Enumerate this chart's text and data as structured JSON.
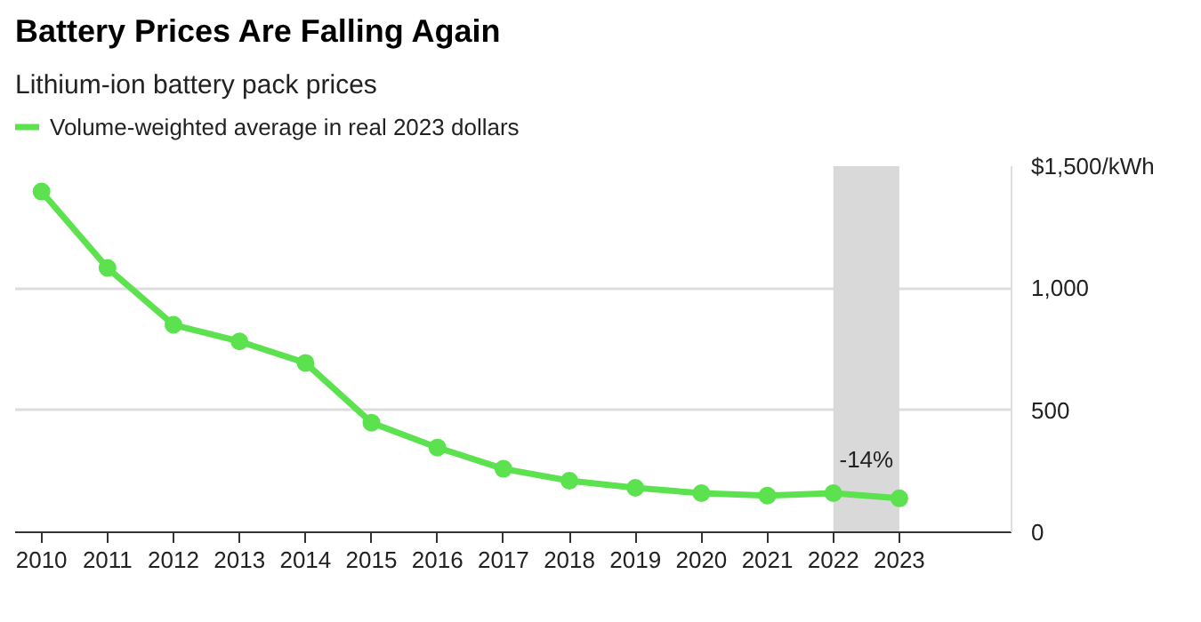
{
  "chart_data": {
    "type": "line",
    "title": "Battery Prices Are Falling Again",
    "subtitle": "Lithium-ion battery pack prices",
    "x": [
      2010,
      2011,
      2012,
      2013,
      2014,
      2015,
      2016,
      2017,
      2018,
      2019,
      2020,
      2021,
      2022,
      2023
    ],
    "series": [
      {
        "name": "Volume-weighted average in real 2023 dollars",
        "color": "#5ce14f",
        "values": [
          1396,
          1083,
          850,
          782,
          694,
          449,
          347,
          260,
          211,
          182,
          160,
          150,
          160,
          139
        ]
      }
    ],
    "xlim": [
      2009.6,
      2024.7
    ],
    "xticks": [
      2010,
      2011,
      2012,
      2013,
      2014,
      2015,
      2016,
      2017,
      2018,
      2019,
      2020,
      2021,
      2022,
      2023
    ],
    "ylim": [
      0,
      1500
    ],
    "yticks": [
      0,
      {
        "value": 500,
        "label": "500"
      },
      {
        "value": 1000,
        "label": "1,000"
      },
      {
        "value": 1500,
        "label": "$1,500/kWh"
      }
    ],
    "bands": [
      {
        "axis": "x",
        "from": 2022,
        "to": 2023,
        "color": "#d9d9d9"
      }
    ],
    "annotations": [
      "-14%"
    ],
    "grid": "y",
    "legend": "top",
    "marker": "circle",
    "line_style": "solid"
  }
}
